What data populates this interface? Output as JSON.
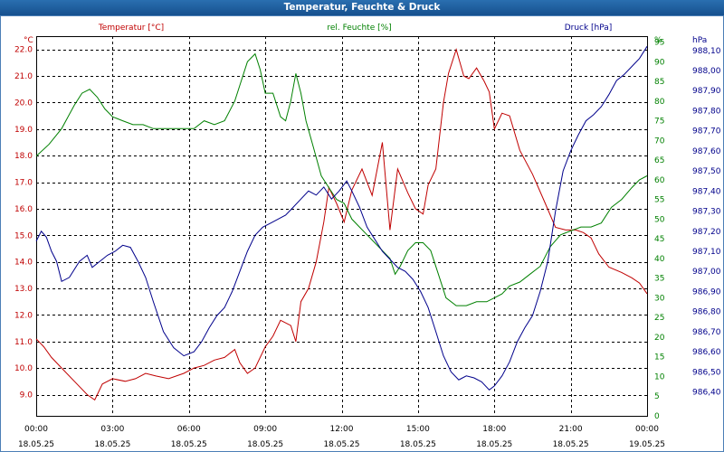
{
  "window": {
    "title": "Temperatur, Feuchte & Druck"
  },
  "chart_data": {
    "type": "line",
    "title": "Temperatur, Feuchte & Druck",
    "x_ticks": [
      {
        "time": "00:00",
        "date": "18.05.25"
      },
      {
        "time": "03:00",
        "date": "18.05.25"
      },
      {
        "time": "06:00",
        "date": "18.05.25"
      },
      {
        "time": "09:00",
        "date": "18.05.25"
      },
      {
        "time": "12:00",
        "date": "18.05.25"
      },
      {
        "time": "15:00",
        "date": "18.05.25"
      },
      {
        "time": "18:00",
        "date": "18.05.25"
      },
      {
        "time": "21:00",
        "date": "18.05.25"
      },
      {
        "time": "00:00",
        "date": "19.05.25"
      }
    ],
    "xlim": [
      0,
      24
    ],
    "grid": true,
    "axes": {
      "temperature": {
        "unit": "°C",
        "label": "Temperatur [°C]",
        "side": "left",
        "color": "#c00000",
        "ylim": [
          8.2,
          22.5
        ],
        "ticks": [
          "9.0",
          "10.0",
          "11.0",
          "12.0",
          "13.0",
          "14.0",
          "15.0",
          "16.0",
          "17.0",
          "18.0",
          "19.0",
          "20.0",
          "21.0",
          "22.0"
        ]
      },
      "humidity": {
        "unit": "%",
        "label": "rel. Feuchte [%]",
        "side": "right",
        "color": "#008000",
        "ylim": [
          0,
          96.5
        ],
        "ticks": [
          "0",
          "5",
          "10",
          "15",
          "20",
          "25",
          "30",
          "35",
          "40",
          "45",
          "50",
          "55",
          "60",
          "65",
          "70",
          "75",
          "80",
          "85",
          "90",
          "95"
        ]
      },
      "pressure": {
        "unit": "hPa",
        "label": "Druck [hPa]",
        "side": "right",
        "color": "#00008b",
        "ylim": [
          986.281,
          988.171
        ],
        "ticks": [
          "986,40",
          "986,50",
          "986,60",
          "986,70",
          "986,80",
          "986,90",
          "987,00",
          "987,10",
          "987,20",
          "987,30",
          "987,40",
          "987,50",
          "987,60",
          "987,70",
          "987,80",
          "987,90",
          "988,00",
          "988,10"
        ]
      }
    },
    "series": [
      {
        "name": "Temperatur [°C]",
        "axis": "temperature",
        "color": "#c00000",
        "x": [
          0,
          0.3,
          0.6,
          1,
          1.5,
          2,
          2.3,
          2.6,
          3,
          3.5,
          3.9,
          4.3,
          4.7,
          5.2,
          5.8,
          6.2,
          6.6,
          7,
          7.4,
          7.8,
          8,
          8.3,
          8.6,
          9,
          9.3,
          9.6,
          10,
          10.2,
          10.4,
          10.7,
          11,
          11.3,
          11.5,
          11.8,
          12.1,
          12.4,
          12.8,
          13.2,
          13.6,
          13.9,
          14.2,
          14.6,
          14.9,
          15.2,
          15.4,
          15.7,
          16,
          16.2,
          16.5,
          16.8,
          17,
          17.3,
          17.6,
          17.8,
          18,
          18.3,
          18.6,
          19,
          19.5,
          20,
          20.4,
          20.8,
          21.2,
          21.5,
          21.8,
          22.1,
          22.5,
          23,
          23.4,
          23.7,
          24
        ],
        "values": [
          11.1,
          10.8,
          10.4,
          10,
          9.5,
          9,
          8.8,
          9.4,
          9.6,
          9.5,
          9.6,
          9.8,
          9.7,
          9.6,
          9.8,
          10,
          10.1,
          10.3,
          10.4,
          10.7,
          10.2,
          9.8,
          10,
          10.8,
          11.2,
          11.8,
          11.6,
          11,
          12.5,
          13,
          14,
          15.5,
          16.8,
          16.2,
          15.5,
          16.7,
          17.5,
          16.5,
          18.5,
          15.2,
          17.5,
          16.6,
          16,
          15.8,
          16.9,
          17.5,
          20,
          21.1,
          22,
          21,
          20.9,
          21.3,
          20.8,
          20.4,
          19,
          19.6,
          19.5,
          18.2,
          17.3,
          16.2,
          15.3,
          15.2,
          15.2,
          15.1,
          14.9,
          14.3,
          13.8,
          13.6,
          13.4,
          13.2,
          12.8
        ]
      },
      {
        "name": "rel. Feuchte [%]",
        "axis": "humidity",
        "color": "#008000",
        "x": [
          0,
          0.5,
          1,
          1.5,
          1.8,
          2.1,
          2.4,
          2.7,
          3,
          3.4,
          3.8,
          4.2,
          4.6,
          5,
          5.4,
          5.8,
          6.2,
          6.6,
          7,
          7.4,
          7.8,
          8,
          8.3,
          8.6,
          8.8,
          9,
          9.3,
          9.6,
          9.8,
          10,
          10.2,
          10.4,
          10.6,
          10.9,
          11.2,
          11.5,
          11.8,
          12.1,
          12.4,
          12.7,
          13,
          13.3,
          13.6,
          13.9,
          14.1,
          14.3,
          14.6,
          14.9,
          15.2,
          15.5,
          15.8,
          16.1,
          16.5,
          16.9,
          17.3,
          17.7,
          18,
          18.3,
          18.6,
          19,
          19.4,
          19.8,
          20.2,
          20.6,
          21,
          21.4,
          21.8,
          22.2,
          22.6,
          23,
          23.4,
          23.7,
          24
        ],
        "values": [
          66,
          69,
          73,
          79,
          82,
          83,
          81,
          78,
          76,
          75,
          74,
          74,
          73,
          73,
          73,
          73,
          73,
          75,
          74,
          75,
          80,
          84,
          90,
          92,
          88,
          82,
          82,
          76,
          75,
          80,
          87,
          82,
          75,
          68,
          61,
          58,
          55,
          54,
          50,
          48,
          46,
          44,
          42,
          40,
          36,
          38,
          42,
          44,
          44,
          42,
          36,
          30,
          28,
          28,
          29,
          29,
          30,
          31,
          33,
          34,
          36,
          38,
          43,
          46,
          47,
          48,
          48,
          49,
          53,
          55,
          58,
          60,
          61
        ]
      },
      {
        "name": "Druck [hPa]",
        "axis": "pressure",
        "color": "#00008b",
        "x": [
          0,
          0.2,
          0.4,
          0.6,
          0.8,
          1,
          1.3,
          1.7,
          2,
          2.2,
          2.5,
          2.8,
          3.1,
          3.4,
          3.7,
          4,
          4.3,
          4.6,
          5,
          5.4,
          5.8,
          6.2,
          6.5,
          6.8,
          7.1,
          7.4,
          7.7,
          8,
          8.3,
          8.6,
          8.9,
          9.2,
          9.5,
          9.8,
          10.1,
          10.4,
          10.7,
          11,
          11.3,
          11.6,
          11.9,
          12.2,
          12.4,
          12.7,
          13,
          13.3,
          13.6,
          13.9,
          14.2,
          14.5,
          14.8,
          15.1,
          15.4,
          15.7,
          16,
          16.3,
          16.6,
          16.9,
          17.2,
          17.5,
          17.8,
          18,
          18.3,
          18.6,
          18.9,
          19.2,
          19.5,
          19.8,
          20.1,
          20.4,
          20.7,
          21,
          21.3,
          21.6,
          21.9,
          22.2,
          22.5,
          22.8,
          23.1,
          23.4,
          23.7,
          24
        ],
        "values": [
          987.15,
          987.2,
          987.17,
          987.1,
          987.05,
          986.95,
          986.97,
          987.05,
          987.08,
          987.02,
          987.05,
          987.08,
          987.1,
          987.13,
          987.12,
          987.05,
          986.97,
          986.85,
          986.7,
          986.62,
          986.58,
          986.6,
          986.65,
          986.72,
          986.78,
          986.82,
          986.9,
          987,
          987.1,
          987.18,
          987.22,
          987.24,
          987.26,
          987.28,
          987.32,
          987.36,
          987.4,
          987.38,
          987.42,
          987.36,
          987.4,
          987.45,
          987.4,
          987.32,
          987.22,
          987.16,
          987.1,
          987.06,
          987.02,
          987,
          986.96,
          986.9,
          986.82,
          986.7,
          986.58,
          986.5,
          986.46,
          986.48,
          986.47,
          986.45,
          986.41,
          986.43,
          986.48,
          986.55,
          986.65,
          986.72,
          986.78,
          986.9,
          987.05,
          987.3,
          987.5,
          987.6,
          987.68,
          987.75,
          987.78,
          987.82,
          987.88,
          987.95,
          987.98,
          988.02,
          988.06,
          988.12
        ]
      }
    ]
  }
}
